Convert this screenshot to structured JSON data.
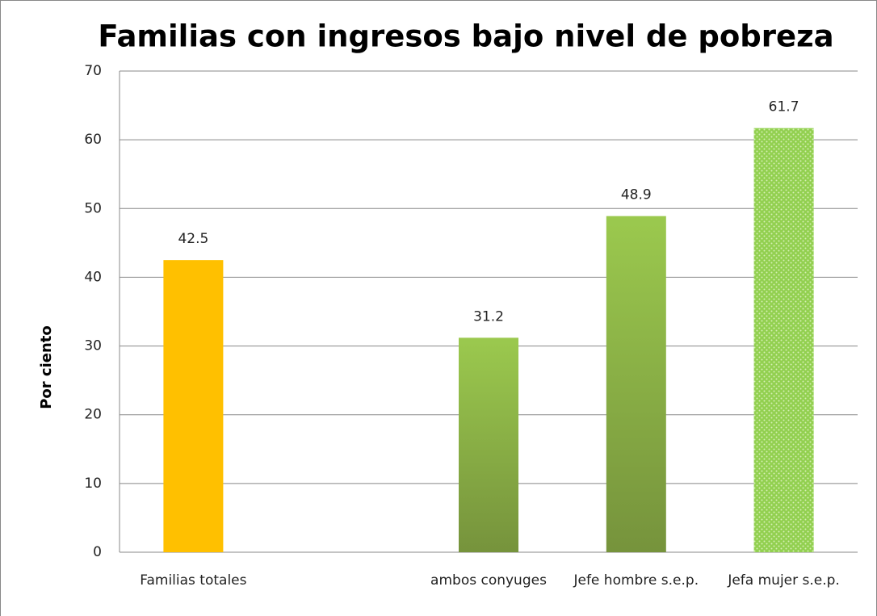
{
  "chart_data": {
    "type": "bar",
    "title": "Familias con ingresos bajo nivel de pobreza",
    "y_label": "Por ciento",
    "categories": [
      "Familias totales",
      null,
      "ambos conyuges",
      "Jefe hombre s.e.p.",
      "Jefa mujer s.e.p."
    ],
    "values": [
      42.5,
      null,
      31.2,
      48.9,
      61.7
    ],
    "colors": [
      "#FFC000",
      null,
      "#8BB445",
      "#8BB445",
      "#92D050"
    ],
    "patterns": [
      null,
      null,
      "gradient",
      "gradient",
      "dots"
    ],
    "ylim": [
      0,
      70
    ],
    "yticks": [
      0,
      10,
      20,
      30,
      40,
      50,
      60,
      70
    ],
    "grid": true
  }
}
